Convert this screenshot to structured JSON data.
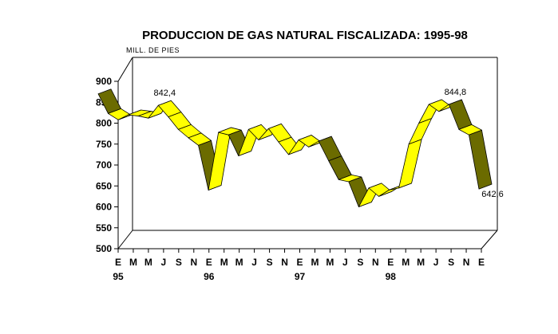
{
  "chart_data": {
    "type": "area",
    "style": "3d-ribbon",
    "title": "PRODUCCION DE GAS NATURAL FISCALIZADA: 1995-98",
    "unit_label": "MILL. DE PIES",
    "ylim": [
      500,
      900
    ],
    "ytick_labels": [
      "900",
      "850",
      "800",
      "750",
      "700",
      "650",
      "600",
      "550",
      "500"
    ],
    "xtick_labels": [
      "E",
      "M",
      "M",
      "J",
      "S",
      "N",
      "E",
      "M",
      "M",
      "J",
      "S",
      "N",
      "E",
      "M",
      "M",
      "J",
      "S",
      "N",
      "E",
      "M",
      "M",
      "J",
      "S",
      "N",
      "E"
    ],
    "year_labels": [
      {
        "after_tick": 0,
        "label": "95"
      },
      {
        "after_tick": 6,
        "label": "96"
      },
      {
        "after_tick": 12,
        "label": "97"
      },
      {
        "after_tick": 18,
        "label": "98"
      }
    ],
    "series": [
      {
        "color": "#ffff00",
        "shade": "#6b6b00",
        "values": [
          870,
          823,
          808,
          820,
          817,
          812,
          842.4,
          815,
          785,
          765,
          747,
          640,
          778,
          772,
          722,
          785,
          760,
          787,
          755,
          725,
          760,
          743,
          757,
          710,
          665,
          660,
          600,
          645,
          625,
          640,
          645,
          750,
          800,
          844.8,
          828,
          844.8,
          785,
          772,
          642.6
        ]
      }
    ],
    "annotations": [
      {
        "index": 6,
        "text": "842,4"
      },
      {
        "index": 35,
        "text": "844,8"
      },
      {
        "index": 38,
        "text": "642,6"
      }
    ],
    "grid": false,
    "legend": "none"
  }
}
